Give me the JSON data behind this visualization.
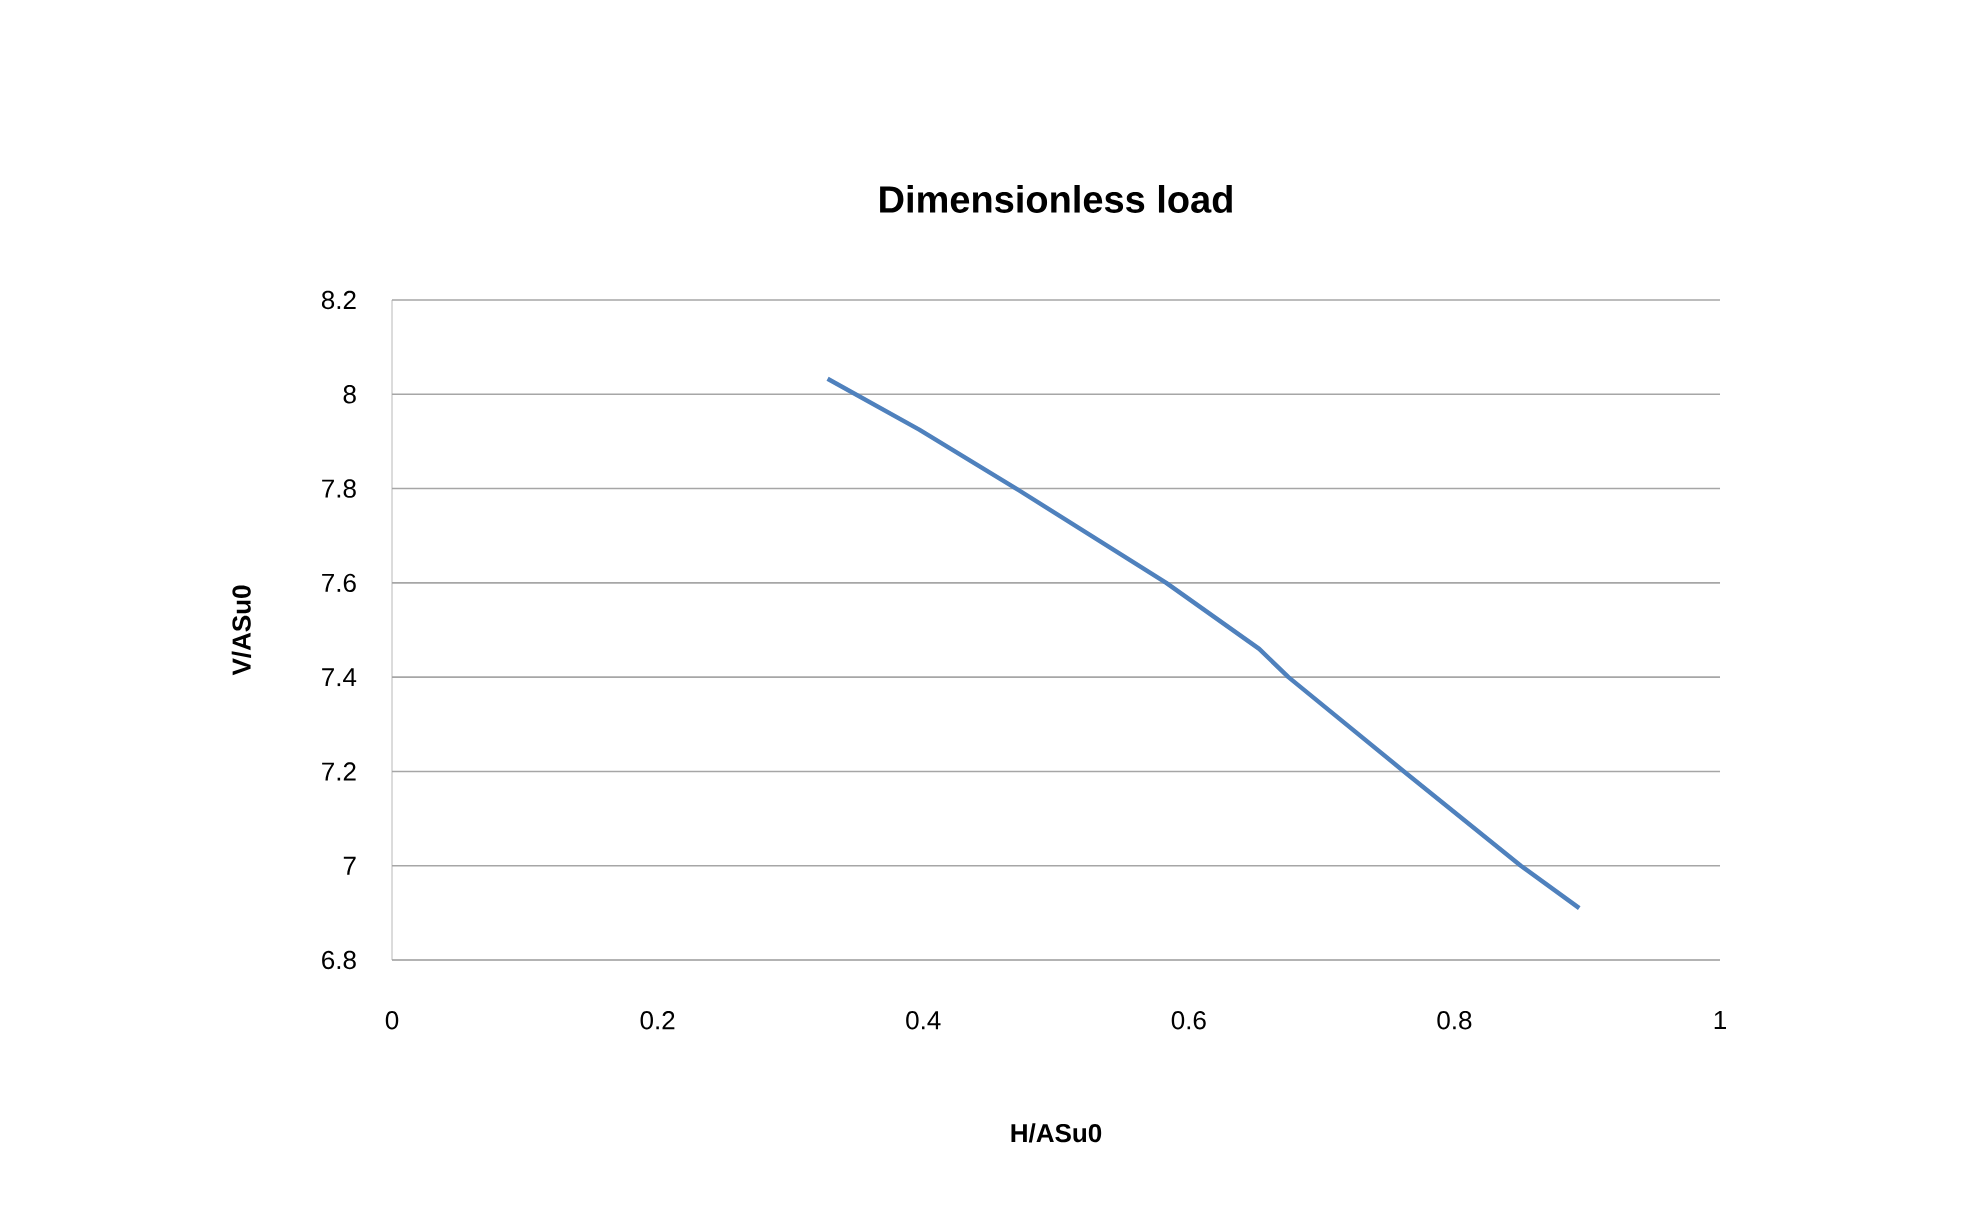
{
  "chart_data": {
    "type": "line",
    "title": "Dimensionless load",
    "xlabel": "H/ASu0",
    "ylabel": "V/ASu0",
    "x": [
      0.328,
      0.397,
      0.47,
      0.583,
      0.653,
      0.675,
      0.762,
      0.85,
      0.894
    ],
    "series": [
      {
        "color": "#4f81bd",
        "values": [
          8.033,
          7.925,
          7.8,
          7.6,
          7.46,
          7.4,
          7.2,
          7.0,
          6.91
        ]
      }
    ],
    "xlim": [
      0,
      1
    ],
    "xticks": [
      0,
      0.2,
      0.4,
      0.6,
      0.8,
      1
    ],
    "ylim": [
      6.8,
      8.2
    ],
    "yticks": [
      6.8,
      7,
      7.2,
      7.4,
      7.6,
      7.8,
      8,
      8.2
    ],
    "grid": "y",
    "marker": "none"
  }
}
